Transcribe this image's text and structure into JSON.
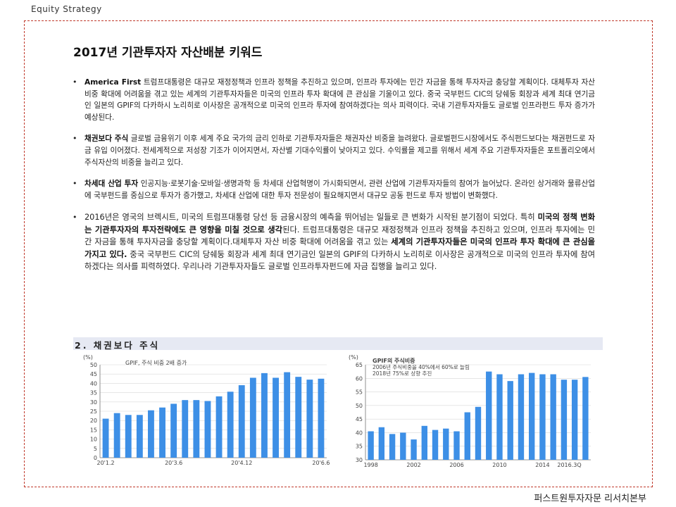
{
  "header": {
    "tag": "Equity Strategy"
  },
  "footer": {
    "org": "퍼스트원투자자문 리서치본부"
  },
  "main": {
    "title": "2017년 기관투자자 자산배분 키워드",
    "bullets": [
      {
        "lead": "America First",
        "text": " 트럼프대통령은 대규모 재정정책과 인프라 정책을 추진하고 있으며, 인프라 투자에는 민간 자금을 통해 투자자금 충당할 계획이다. 대체투자 자산 비중 확대에 어려움을 겪고 있는 세계의 기관투자자들은 미국의 인프라 투자 확대에 큰 관심을 기울이고 있다. 중국 국부펀드 CIC의 당쉐둥 회장과 세계 최대 연기금인 일본의 GPIF의 다카하시 노리히로 이사장은 공개적으로 미국의 인프라 투자에 참여하겠다는 의사 피력이다. 국내 기관투자자들도 글로벌 인프라펀드 투자 증가가 예상된다."
      },
      {
        "lead": "채권보다 주식",
        "text": " 글로벌 금융위기 이후 세계 주요 국가의 금리 인하로 기관투자자들은 채권자산 비중을 늘려왔다. 글로벌펀드시장에서도 주식펀드보다는 채권펀드로 자금 유입 이어졌다. 전세계적으로 저성장 기조가 이어지면서, 자산별 기대수익률이 낮아지고 있다. 수익률을 제고를 위해서 세계 주요 기관투자자들은 포트폴리오에서 주식자산의 비중을 늘리고 있다."
      },
      {
        "lead": "차세대 산업 투자",
        "text": " 인공지능·로봇기술·모바일·생명과학 등 차세대 산업혁명이 가시화되면서, 관련 산업에 기관투자자들의 참여가 늘어났다. 온라인 상거래와 물류산업에 국부펀드를 중심으로 투자가 증가했고, 차세대 산업에 대한 투자 전문성이 필요해지면서 대규모 공동 펀드로 투자 방법이 변화했다."
      },
      {
        "p1": "2016년은 영국의 브렉시트, 미국의 트럼프대통령 당선 등 금융시장의 예측을 뛰어넘는 일들로 큰 변화가 시작된 분기점이 되었다. 특히 ",
        "b1": "미국의 정책 변화는 기관투자자의 투자전략에도 큰 영향을 미칠 것으로 생각",
        "p2": "된다. 트럼프대통령은 대규모 재정정책과 인프라 정책을 추진하고 있으며, 인프라 투자에는 민간 자금을 통해 투자자금을 충당할 계획이다.대체투자 자산 비중 확대에 어려움을 겪고 있는 ",
        "b2": "세계의 기관투자자들은 미국의 인프라 투자 확대에 큰 관심을 가지고 있다.",
        "p3": " 중국 국부펀드 CIC의 당쉐둥 회장과 세계 최대 연기금인 일본의 GPIF의 다카하시 노리히로 이사장은 공개적으로 미국의 인프라 투자에 참여하겠다는 의사를 피력하였다. 우리나라 기관투자자들도 글로벌 인프라투자펀드에 자금 집행을 늘리고 있다."
      }
    ],
    "section_title": "2. 채권보다 주식"
  },
  "chart_data": [
    {
      "type": "bar",
      "title": "GPIF, 주식 비중 2배 증가",
      "ylabel": "(%)",
      "ylim": [
        0,
        50
      ],
      "yticks": [
        0,
        5,
        10,
        15,
        20,
        25,
        30,
        35,
        40,
        45,
        50
      ],
      "xtick_labels": [
        "20'1.2",
        "20'3.6",
        "20'4.12",
        "20'6.6"
      ],
      "xtick_positions": [
        0,
        6,
        12,
        19
      ],
      "values": [
        21,
        24,
        23,
        23,
        25.5,
        27,
        29,
        31,
        31,
        30.5,
        33,
        35.5,
        39,
        43,
        45.5,
        43,
        46,
        43.5,
        42,
        42.5
      ],
      "color": "#3d8fe6",
      "grid": true
    },
    {
      "type": "bar",
      "title": "GPIF의 주식비중",
      "subtitle_lines": [
        "2006년 주식비중을 40%에서 60%로 늘림",
        "2018년 75%로 상향 추진"
      ],
      "ylabel": "(%)",
      "ylim": [
        30,
        65
      ],
      "yticks": [
        30,
        35,
        40,
        45,
        50,
        55,
        60,
        65
      ],
      "xtick_labels": [
        "1998",
        "2002",
        "2006",
        "2010",
        "2014",
        "2016.3Q"
      ],
      "xtick_positions": [
        0,
        4,
        8,
        12,
        16,
        18.5
      ],
      "values": [
        40.5,
        42,
        39.5,
        40,
        37.5,
        42.5,
        41,
        41.5,
        40.5,
        47.5,
        49.5,
        62.5,
        61.5,
        59,
        61.5,
        62,
        61.5,
        61.5,
        59.5,
        59.5,
        60.5
      ],
      "color": "#3d8fe6",
      "grid": true
    }
  ]
}
